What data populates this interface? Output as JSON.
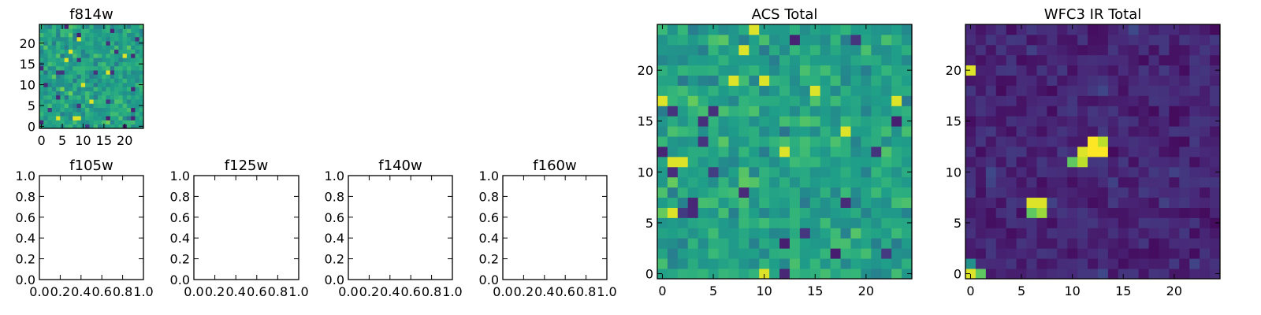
{
  "chart_data": [
    {
      "type": "heatmap",
      "id": "f814w",
      "title": "f814w",
      "nx": 25,
      "ny": 25,
      "colormap": "viridis",
      "xticks": [
        0,
        5,
        10,
        15,
        20
      ],
      "yticks": [
        0,
        5,
        10,
        15,
        20
      ],
      "xlim": [
        -0.5,
        24.5
      ],
      "ylim": [
        -0.5,
        24.5
      ],
      "pattern": "noise",
      "vmin": 0,
      "vmax": 1
    },
    {
      "type": "empty",
      "id": "f105w",
      "title": "f105w",
      "xlim": [
        0,
        1
      ],
      "ylim": [
        0,
        1
      ],
      "xticks": [
        "0.0",
        "0.2",
        "0.4",
        "0.6",
        "0.8",
        "1.0"
      ],
      "yticks": [
        "0.0",
        "0.2",
        "0.4",
        "0.6",
        "0.8",
        "1.0"
      ]
    },
    {
      "type": "empty",
      "id": "f125w",
      "title": "f125w",
      "xlim": [
        0,
        1
      ],
      "ylim": [
        0,
        1
      ],
      "xticks": [
        "0.0",
        "0.2",
        "0.4",
        "0.6",
        "0.8",
        "1.0"
      ],
      "yticks": [
        "0.0",
        "0.2",
        "0.4",
        "0.6",
        "0.8",
        "1.0"
      ]
    },
    {
      "type": "empty",
      "id": "f140w",
      "title": "f140w",
      "xlim": [
        0,
        1
      ],
      "ylim": [
        0,
        1
      ],
      "xticks": [
        "0.0",
        "0.2",
        "0.4",
        "0.6",
        "0.8",
        "1.0"
      ],
      "yticks": [
        "0.0",
        "0.2",
        "0.4",
        "0.6",
        "0.8",
        "1.0"
      ]
    },
    {
      "type": "empty",
      "id": "f160w",
      "title": "f160w",
      "xlim": [
        0,
        1
      ],
      "ylim": [
        0,
        1
      ],
      "xticks": [
        "0.0",
        "0.2",
        "0.4",
        "0.6",
        "0.8",
        "1.0"
      ],
      "yticks": [
        "0.0",
        "0.2",
        "0.4",
        "0.6",
        "0.8",
        "1.0"
      ]
    },
    {
      "type": "heatmap",
      "id": "acs_total",
      "title": "ACS Total",
      "nx": 25,
      "ny": 25,
      "colormap": "viridis",
      "xticks": [
        0,
        5,
        10,
        15,
        20
      ],
      "yticks": [
        0,
        5,
        10,
        15,
        20
      ],
      "xlim": [
        -0.5,
        24.5
      ],
      "ylim": [
        -0.5,
        24.5
      ],
      "pattern": "noise",
      "vmin": 0,
      "vmax": 1
    },
    {
      "type": "heatmap",
      "id": "wfc3_ir_total",
      "title": "WFC3 IR Total",
      "nx": 25,
      "ny": 25,
      "colormap": "viridis",
      "xticks": [
        0,
        5,
        10,
        15,
        20
      ],
      "yticks": [
        0,
        5,
        10,
        15,
        20
      ],
      "xlim": [
        -0.5,
        24.5
      ],
      "ylim": [
        -0.5,
        24.5
      ],
      "pattern": "sources",
      "vmin": 0,
      "vmax": 1,
      "bright_pixels": [
        {
          "x": 12,
          "y": 13,
          "v": 1.0
        },
        {
          "x": 11,
          "y": 12,
          "v": 0.95
        },
        {
          "x": 12,
          "y": 12,
          "v": 1.0
        },
        {
          "x": 13,
          "y": 12,
          "v": 1.0
        },
        {
          "x": 13,
          "y": 13,
          "v": 0.9
        },
        {
          "x": 10,
          "y": 11,
          "v": 0.75
        },
        {
          "x": 11,
          "y": 11,
          "v": 0.9
        },
        {
          "x": 6,
          "y": 7,
          "v": 0.95
        },
        {
          "x": 7,
          "y": 7,
          "v": 0.95
        },
        {
          "x": 6,
          "y": 6,
          "v": 0.75
        },
        {
          "x": 7,
          "y": 6,
          "v": 0.85
        },
        {
          "x": 0,
          "y": 20,
          "v": 0.95
        },
        {
          "x": 0,
          "y": 0,
          "v": 0.95
        },
        {
          "x": 1,
          "y": 0,
          "v": 0.75
        },
        {
          "x": 0,
          "y": 1,
          "v": 0.5
        }
      ]
    }
  ]
}
